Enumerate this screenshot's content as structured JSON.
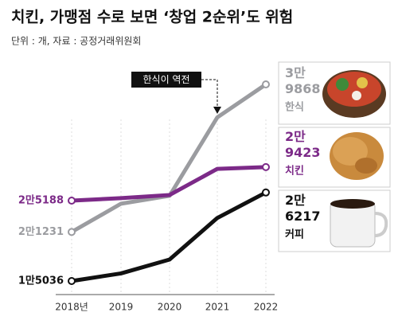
{
  "chart_data": {
    "type": "line",
    "title": "치킨, 가맹점 수로 보면 ‘창업 2순위’도 위험",
    "subtitle": "단위 : 개, 자료 : 공정거래위원회",
    "annotation": "한식이 역전",
    "categories": [
      "2018년",
      "2019",
      "2020",
      "2021",
      "2022"
    ],
    "series": [
      {
        "name": "한식",
        "color": "#9b9ca0",
        "values": [
          21231,
          24800,
          25800,
          35700,
          39868
        ],
        "value_labels": [
          "2만1231",
          null,
          null,
          null,
          "3만\n9868"
        ]
      },
      {
        "name": "치킨",
        "color": "#7c2a88",
        "values": [
          25188,
          25500,
          25900,
          29200,
          29423
        ],
        "value_labels": [
          "2만5188",
          null,
          null,
          null,
          "2만\n9423"
        ]
      },
      {
        "name": "커피",
        "color": "#111111",
        "values": [
          15036,
          16000,
          17750,
          23000,
          26217
        ],
        "value_labels": [
          "1만5036",
          null,
          null,
          null,
          "2만\n6217"
        ]
      }
    ]
  }
}
